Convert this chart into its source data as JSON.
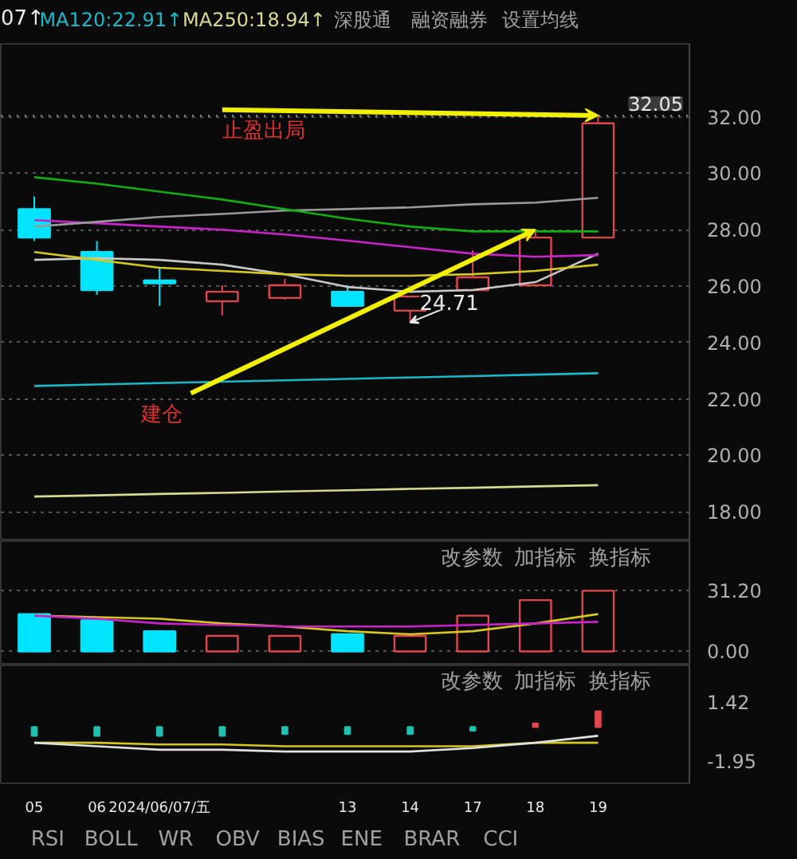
{
  "chart_data": [
    {
      "type": "candlestick",
      "ohlc": [
        [
          28.73,
          29.18,
          27.6,
          27.72
        ],
        [
          27.21,
          27.6,
          25.69,
          25.86
        ],
        [
          26.2,
          26.65,
          25.3,
          26.1
        ],
        [
          25.46,
          26.03,
          24.96,
          25.8
        ],
        [
          25.58,
          26.25,
          25.52,
          26.03
        ],
        [
          25.8,
          26.03,
          25.3,
          25.3
        ],
        [
          25.13,
          25.63,
          24.71,
          25.63
        ],
        [
          25.86,
          27.27,
          25.86,
          26.31
        ],
        [
          26.03,
          28.0,
          26.03,
          27.72
        ],
        [
          27.72,
          32.05,
          27.72,
          31.77
        ]
      ],
      "colors": [
        "#00e5ff",
        "#00e5ff",
        "#00e5ff",
        "#e0474c",
        "#e0474c",
        "#00e5ff",
        "#e0474c",
        "#e0474c",
        "#e0474c",
        "#e0474c"
      ],
      "series": [
        {
          "type": "line",
          "color": "#c8c8c8",
          "values": [
            26.93,
            26.99,
            26.93,
            26.76,
            26.42,
            25.97,
            25.8,
            25.86,
            26.14,
            27.15
          ]
        },
        {
          "type": "line",
          "color": "#d4c81e",
          "values": [
            27.21,
            26.93,
            26.65,
            26.54,
            26.42,
            26.37,
            26.37,
            26.42,
            26.54,
            26.76
          ]
        },
        {
          "type": "line",
          "color": "#cc22cc",
          "values": [
            28.34,
            28.23,
            28.11,
            28.0,
            27.83,
            27.61,
            27.38,
            27.15,
            27.04,
            27.1
          ]
        },
        {
          "type": "line",
          "color": "#9a9a9a",
          "values": [
            28.11,
            28.28,
            28.45,
            28.56,
            28.68,
            28.73,
            28.79,
            28.9,
            28.96,
            29.13
          ]
        },
        {
          "type": "line",
          "color": "#10b010",
          "values": [
            29.86,
            29.63,
            29.35,
            29.07,
            28.73,
            28.39,
            28.11,
            27.94,
            27.94,
            27.94
          ]
        },
        {
          "type": "line",
          "name": "MA120:22.91↑",
          "color": "#1ab8c8",
          "values": [
            22.46,
            22.51,
            22.56,
            22.61,
            22.66,
            22.71,
            22.76,
            22.81,
            22.86,
            22.91
          ]
        },
        {
          "type": "line",
          "name": "MA250:18.94↑",
          "color": "#d8d890",
          "values": [
            18.54,
            18.58,
            18.63,
            18.67,
            18.72,
            18.76,
            18.81,
            18.85,
            18.9,
            18.94
          ]
        }
      ],
      "ylim": [
        16.96,
        34.59
      ],
      "yticks": [
        {
          "value": 18,
          "label": "18.00"
        },
        {
          "value": 20,
          "label": "20.00"
        },
        {
          "value": 22,
          "label": "22.00"
        },
        {
          "value": 24,
          "label": "24.00"
        },
        {
          "value": 26,
          "label": "26.00"
        },
        {
          "value": 28,
          "label": "28.00"
        },
        {
          "value": 30,
          "label": "30.00"
        },
        {
          "value": 32,
          "label": "32.00"
        }
      ],
      "ref_lines": [
        {
          "axis": "y",
          "value": 32.05,
          "label": "32.05"
        }
      ],
      "grid": "y",
      "tick_labels": "y",
      "annotations": [
        "07↑",
        "深股通",
        "融资融券",
        "设置均线",
        "止盈出局",
        "建仓",
        "24.71"
      ]
    },
    {
      "type": "bar",
      "values": [
        19.2,
        16.0,
        10.4,
        8.0,
        8.0,
        8.8,
        8.0,
        18.4,
        26.4,
        31.2
      ],
      "colors": [
        "#00e5ff",
        "#00e5ff",
        "#00e5ff",
        "#e0474c",
        "#e0474c",
        "#00e5ff",
        "#e0474c",
        "#e0474c",
        "#e0474c",
        "#e0474c"
      ],
      "series": [
        {
          "type": "line",
          "color": "#d4c81e",
          "values": [
            18.4,
            17.6,
            16.8,
            14.4,
            12.8,
            10.4,
            8.8,
            10.4,
            14.4,
            19.2
          ]
        },
        {
          "type": "line",
          "color": "#cc22cc",
          "values": [
            18.4,
            16.8,
            14.4,
            13.6,
            12.8,
            12.8,
            12.8,
            13.6,
            14.4,
            15.2
          ]
        }
      ],
      "ylim": [
        -7.2,
        56.8
      ],
      "yticks": [
        {
          "value": 0,
          "label": "0.00"
        },
        {
          "value": 31.2,
          "label": "31.20"
        }
      ],
      "grid": "y",
      "tick_labels": "y",
      "annotations": [
        "改参数",
        "加指标",
        "换指标"
      ]
    },
    {
      "type": "bar",
      "categories": [
        "05",
        "06",
        "2024/06/07/五",
        null,
        null,
        "13",
        "14",
        "17",
        "18",
        "19"
      ],
      "values": [
        -0.5,
        -0.5,
        -0.5,
        -0.5,
        -0.4,
        -0.4,
        -0.4,
        -0.2,
        0.2,
        0.9
      ],
      "colors": [
        "#20c0b0",
        "#20c0b0",
        "#20c0b0",
        "#20c0b0",
        "#20c0b0",
        "#20c0b0",
        "#20c0b0",
        "#20c0b0",
        "#e0474c",
        "#e0474c"
      ],
      "series": [
        {
          "type": "line",
          "color": "#d4c81e",
          "values": [
            -0.9,
            -0.9,
            -1.0,
            -1.0,
            -1.1,
            -1.1,
            -1.1,
            -1.1,
            -0.9,
            -0.9
          ]
        },
        {
          "type": "line",
          "color": "#e0e0e0",
          "values": [
            -0.9,
            -1.1,
            -1.3,
            -1.3,
            -1.4,
            -1.4,
            -1.4,
            -1.2,
            -0.9,
            -0.5
          ]
        }
      ],
      "ylim": [
        -3.22,
        3.53
      ],
      "yticks": [
        {
          "value": -1.95,
          "label": "-1.95"
        },
        {
          "value": 1.42,
          "label": "1.42"
        }
      ],
      "annotations": [
        "改参数",
        "加指标",
        "换指标",
        "RSI",
        "BOLL",
        "WR",
        "OBV",
        "BIAS",
        "ENE",
        "BRAR",
        "CCI"
      ]
    }
  ]
}
